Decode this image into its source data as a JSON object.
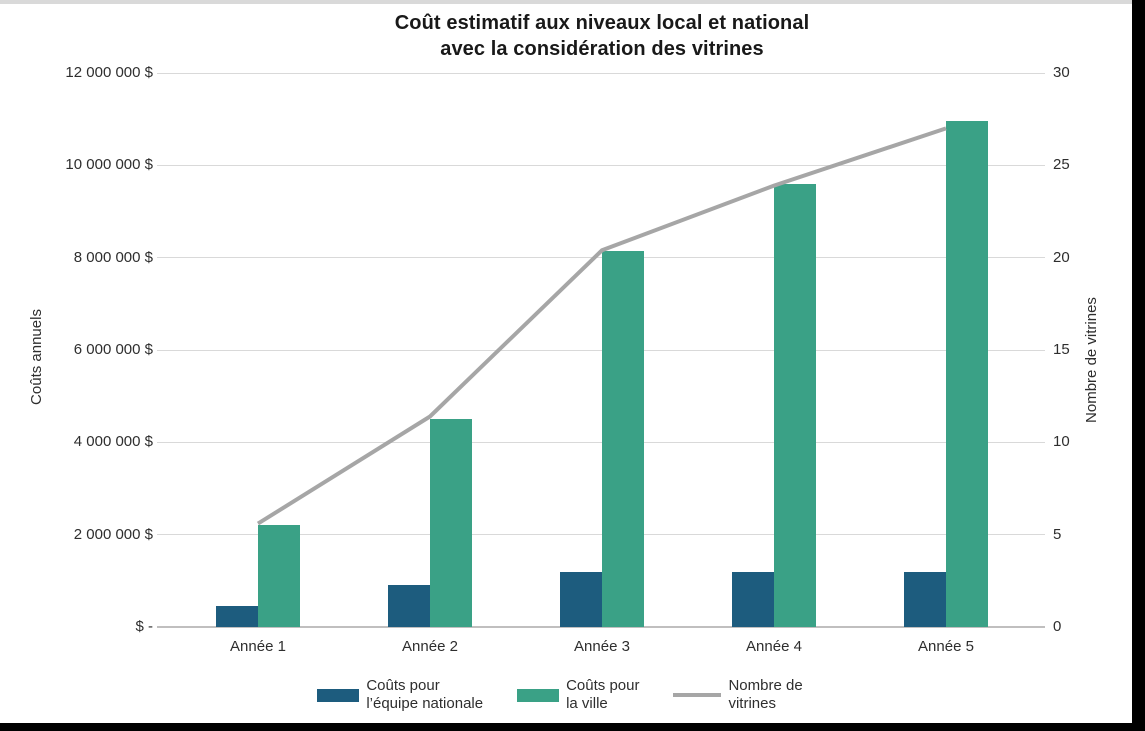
{
  "page": {
    "background": "#ffffff",
    "top_strip_color": "#d9d9d9",
    "frame_color": "#000000"
  },
  "chart_data": {
    "type": "combo",
    "title_lines": [
      "Coût estimatif aux niveaux local et national",
      "avec la considération des vitrines"
    ],
    "categories": [
      "Année 1",
      "Année 2",
      "Année 3",
      "Année 4",
      "Année 5"
    ],
    "series": [
      {
        "name": "Coûts pour l’équipe nationale",
        "type": "bar",
        "axis": "left",
        "color": "#1d5c7e",
        "values": [
          450000,
          920000,
          1200000,
          1200000,
          1200000
        ]
      },
      {
        "name": "Coûts pour la ville",
        "type": "bar",
        "axis": "left",
        "color": "#3aa186",
        "values": [
          2200000,
          4500000,
          8150000,
          9600000,
          10950000
        ]
      },
      {
        "name": "Nombre de vitrines",
        "type": "line",
        "axis": "right",
        "color": "#a6a6a6",
        "values": [
          5.6,
          11.4,
          20.4,
          23.9,
          27
        ]
      }
    ],
    "left_axis": {
      "label": "Coûts annuels",
      "min": 0,
      "max": 12000000,
      "ticks": [
        {
          "value": 12000000,
          "label": "12 000 000 $"
        },
        {
          "value": 10000000,
          "label": "10 000 000 $"
        },
        {
          "value": 8000000,
          "label": "8 000 000 $"
        },
        {
          "value": 6000000,
          "label": "6 000 000 $"
        },
        {
          "value": 4000000,
          "label": "4 000 000 $"
        },
        {
          "value": 2000000,
          "label": "2 000 000 $"
        },
        {
          "value": 0,
          "label": "$ -"
        }
      ]
    },
    "right_axis": {
      "label": "Nombre de vitrines",
      "min": 0,
      "max": 30,
      "ticks": [
        {
          "value": 30,
          "label": "30"
        },
        {
          "value": 25,
          "label": "25"
        },
        {
          "value": 20,
          "label": "20"
        },
        {
          "value": 15,
          "label": "15"
        },
        {
          "value": 10,
          "label": "10"
        },
        {
          "value": 5,
          "label": "5"
        },
        {
          "value": 0,
          "label": "0"
        }
      ]
    },
    "legend": [
      {
        "label": "Coûts pour\nl’équipe nationale",
        "swatch": "rect",
        "color": "#1d5c7e"
      },
      {
        "label": "Coûts pour\nla ville",
        "swatch": "rect",
        "color": "#3aa186"
      },
      {
        "label": "Nombre de\nvitrines",
        "swatch": "line",
        "color": "#a6a6a6"
      }
    ],
    "grid": true,
    "legend_position": "bottom",
    "gridline_color": "#d9d9d9",
    "baseline_color": "#c0bfbf"
  }
}
